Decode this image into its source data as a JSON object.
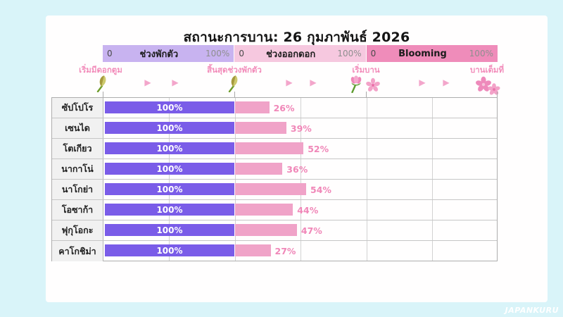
{
  "title": "สถานะการบาน: 26 กุมภาพันธ์ 2026",
  "legend_segments": [
    {
      "start": "0",
      "label": "ช่วงพักตัว",
      "end": "100%",
      "color": "#c8b3f0"
    },
    {
      "start": "0",
      "label": "ช่วงออกดอก",
      "end": "100%",
      "color": "#f6c8df"
    },
    {
      "start": "0",
      "label": "Blooming",
      "end": "100%",
      "color": "#ef8cba"
    }
  ],
  "milestones": [
    {
      "label": "เริ่มมีดอกตูม",
      "icon": "closed-bud-icon"
    },
    {
      "label": "สิ้นสุดช่วงพักตัว",
      "icon": "closed-bud-icon"
    },
    {
      "label": "เริ่มบาน",
      "icon": "opening-bud-and-blossom-icon"
    },
    {
      "label": "บานเต็มที่",
      "icon": "double-blossom-icon"
    }
  ],
  "glyphs": {
    "arrow": "▶"
  },
  "chart_data": {
    "type": "bar",
    "orientation": "horizontal",
    "title": "สถานะการบาน: 26 กุมภาพันธ์ 2026",
    "categories": [
      "ซัปโปโร",
      "เซนได",
      "โตเกียว",
      "นากาโน่",
      "นาโกย่า",
      "โอซาก้า",
      "ฟุกุโอกะ",
      "คาโกชิม่า"
    ],
    "series": [
      {
        "name": "ช่วงพักตัว",
        "unit": "%",
        "color": "#7a5ce8",
        "segment_range": [
          0,
          100
        ],
        "values": [
          100,
          100,
          100,
          100,
          100,
          100,
          100,
          100
        ]
      },
      {
        "name": "ช่วงออกดอก",
        "unit": "%",
        "color": "#f0a3c8",
        "segment_range": [
          0,
          100
        ],
        "values": [
          26,
          39,
          52,
          36,
          54,
          44,
          47,
          27
        ]
      },
      {
        "name": "Blooming",
        "unit": "%",
        "color": "#ef8cba",
        "segment_range": [
          0,
          100
        ],
        "values": [
          0,
          0,
          0,
          0,
          0,
          0,
          0,
          0
        ]
      }
    ],
    "value_labels": true,
    "grid": true,
    "legend_position": "top"
  },
  "watermark": "JAPANKURU",
  "colors": {
    "background": "#d9f4f9",
    "card": "#fffefe",
    "dormancy_bar": "#7a5ce8",
    "flowering_bar": "#f0a3c8",
    "milestone_text": "#f28cba",
    "gridline": "#d2d2d2"
  }
}
